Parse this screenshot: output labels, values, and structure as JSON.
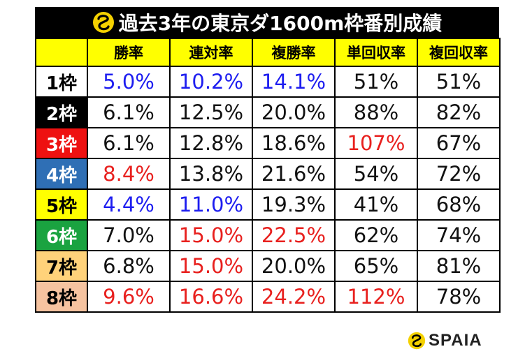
{
  "title": "過去3年の東京ダ1600m枠番別成績",
  "brand": "SPAIA",
  "colors": {
    "accent_yellow": "#ffff00",
    "blue_text": "#1d1df0",
    "red_text": "#e8201e"
  },
  "icons": {
    "title_logo": "spaia-logo-icon",
    "brand_logo": "spaia-logo-icon"
  },
  "headers": [
    "",
    "勝率",
    "連対率",
    "複勝率",
    "単回収率",
    "複回収率"
  ],
  "rows": [
    {
      "frame": "1枠",
      "cells": [
        "5.0%",
        "10.2%",
        "14.1%",
        "51%",
        "51%"
      ],
      "colors": [
        "blue",
        "blue",
        "blue",
        "",
        ""
      ]
    },
    {
      "frame": "2枠",
      "cells": [
        "6.1%",
        "12.5%",
        "20.0%",
        "88%",
        "82%"
      ],
      "colors": [
        "",
        "",
        "",
        "",
        ""
      ]
    },
    {
      "frame": "3枠",
      "cells": [
        "6.1%",
        "12.8%",
        "18.6%",
        "107%",
        "67%"
      ],
      "colors": [
        "",
        "",
        "",
        "red",
        ""
      ]
    },
    {
      "frame": "4枠",
      "cells": [
        "8.4%",
        "13.8%",
        "21.6%",
        "54%",
        "72%"
      ],
      "colors": [
        "red",
        "",
        "",
        "",
        ""
      ]
    },
    {
      "frame": "5枠",
      "cells": [
        "4.4%",
        "11.0%",
        "19.3%",
        "41%",
        "68%"
      ],
      "colors": [
        "blue",
        "blue",
        "",
        "",
        ""
      ]
    },
    {
      "frame": "6枠",
      "cells": [
        "7.0%",
        "15.0%",
        "22.5%",
        "62%",
        "74%"
      ],
      "colors": [
        "",
        "red",
        "red",
        "",
        ""
      ]
    },
    {
      "frame": "7枠",
      "cells": [
        "6.8%",
        "15.0%",
        "20.0%",
        "65%",
        "81%"
      ],
      "colors": [
        "",
        "red",
        "",
        "",
        ""
      ]
    },
    {
      "frame": "8枠",
      "cells": [
        "9.6%",
        "16.6%",
        "24.2%",
        "112%",
        "78%"
      ],
      "colors": [
        "red",
        "red",
        "red",
        "red",
        ""
      ]
    }
  ]
}
